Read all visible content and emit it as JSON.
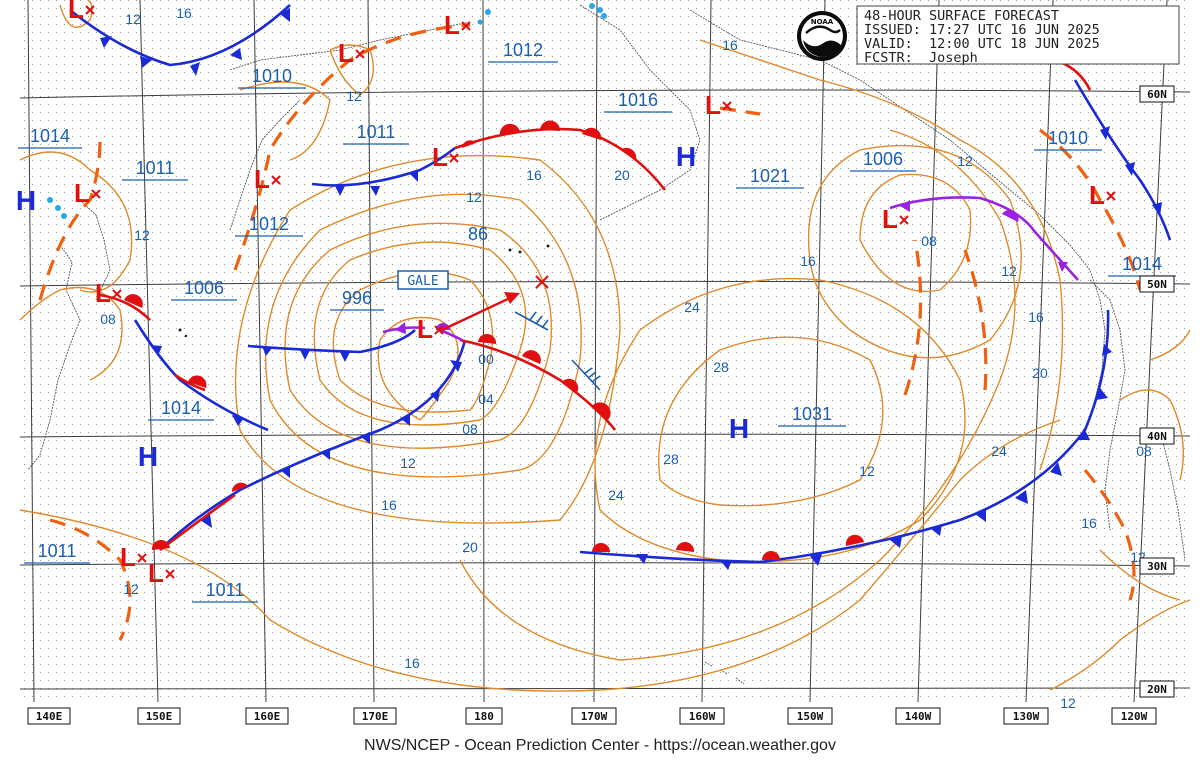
{
  "header": {
    "title": "48-HOUR SURFACE FORECAST",
    "issued": "ISSUED: 17:27 UTC 16 JUN 2025",
    "valid": "VALID:  12:00 UTC 18 JUN 2025",
    "forecaster": "FCSTR:  Joseph"
  },
  "logo": {
    "text": "NOAA"
  },
  "footer": "NWS/NCEP - Ocean Prediction Center - https://ocean.weather.gov",
  "longitude_labels": [
    "140E",
    "150E",
    "160E",
    "170E",
    "180",
    "170W",
    "160W",
    "150W",
    "140W",
    "130W",
    "120W"
  ],
  "latitude_labels": [
    "60N",
    "50N",
    "40N",
    "30N",
    "20N"
  ],
  "warnings": {
    "gale": "GALE"
  },
  "pressure_centers": {
    "highs": [
      "H",
      "H",
      "H",
      "H"
    ],
    "lows": [
      "L",
      "L",
      "L",
      "L",
      "L",
      "L",
      "L",
      "L",
      "L",
      "L",
      "L",
      "L",
      "L"
    ]
  },
  "pressure_labels": [
    "1010",
    "1012",
    "1014",
    "1011",
    "1012",
    "1006",
    "1014",
    "1011",
    "1011",
    "1011",
    "996",
    "86",
    "1016",
    "1021",
    "1006",
    "1010",
    "1014",
    "1031"
  ],
  "isobar_labels": [
    "12",
    "16",
    "12",
    "12",
    "08",
    "12",
    "16",
    "20",
    "12",
    "16",
    "00",
    "04",
    "08",
    "12",
    "16",
    "20",
    "24",
    "28",
    "24",
    "28",
    "16",
    "16",
    "12",
    "08",
    "12",
    "16",
    "20",
    "24",
    "16",
    "08",
    "12",
    "12",
    "12"
  ],
  "colors": {
    "isobar": "#e08a2a",
    "cold_front": "#1a2ad6",
    "warm_front": "#e01010",
    "occluded_front": "#9a22e0",
    "trough": "#f06010",
    "label_text": "#1a5fb0",
    "low_symbol": "#e01010",
    "high_symbol": "#1a2ad6"
  }
}
